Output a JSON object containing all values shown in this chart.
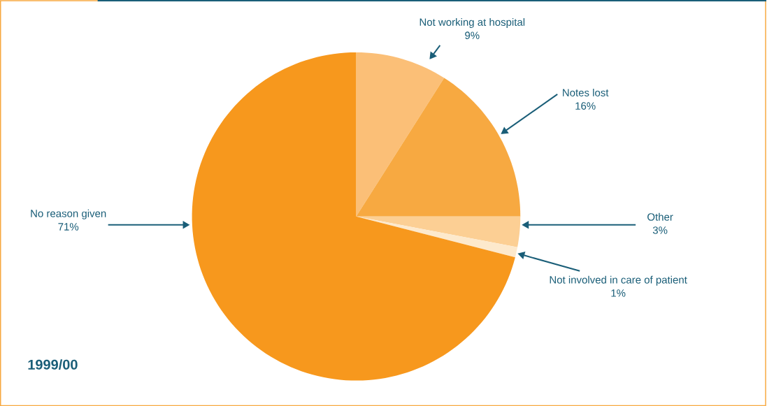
{
  "chart_data": {
    "type": "pie",
    "title": "1999/00",
    "categories": [
      "Not working at hospital",
      "Notes lost",
      "Other",
      "Not involved in care of patient",
      "No reason given"
    ],
    "values": [
      9,
      16,
      3,
      1,
      71
    ],
    "value_labels": [
      "9%",
      "16%",
      "3%",
      "1%",
      "71%"
    ],
    "colors": [
      "#fbbf77",
      "#f7a941",
      "#fccf94",
      "#fde9cc",
      "#f7981d"
    ]
  }
}
